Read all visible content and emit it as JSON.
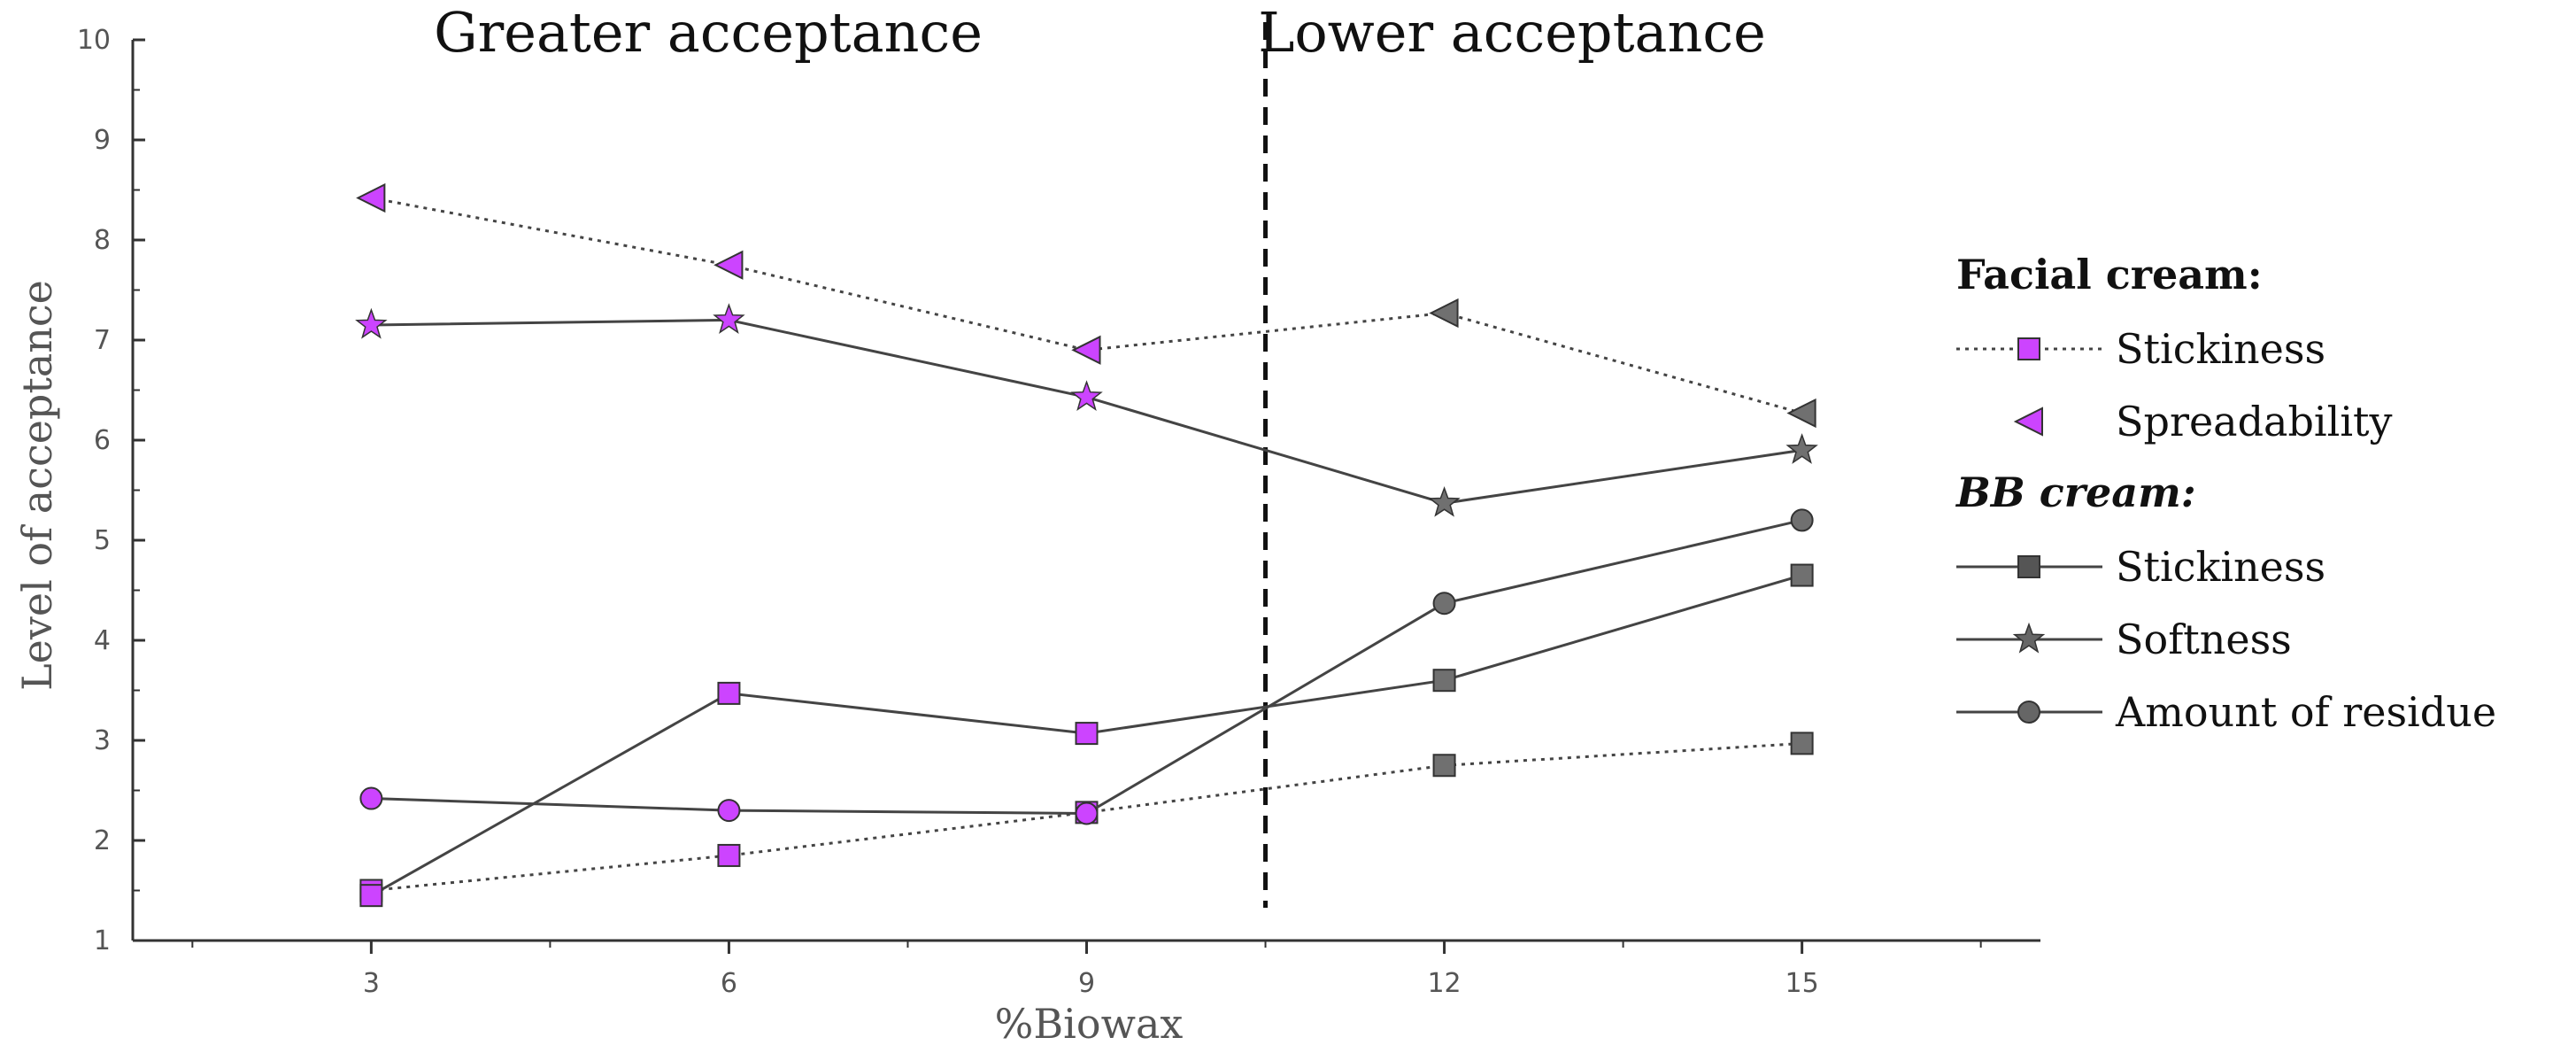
{
  "chart_data": {
    "type": "line",
    "title": "",
    "xlabel": "%Biowax",
    "ylabel": "Level of acceptance",
    "x": [
      3,
      6,
      9,
      12,
      15
    ],
    "xlim": [
      1,
      17
    ],
    "ylim": [
      1,
      10
    ],
    "x_ticks": [
      3,
      6,
      9,
      12,
      15
    ],
    "y_ticks": [
      1,
      2,
      3,
      4,
      5,
      6,
      7,
      8,
      9,
      10
    ],
    "divider_x": 10.5,
    "regions": [
      {
        "label": "Greater acceptance",
        "side": "left"
      },
      {
        "label": "Lower acceptance",
        "side": "right"
      }
    ],
    "legend": {
      "position": "right",
      "groups": [
        {
          "header": "Facial cream:",
          "italic": false,
          "entries": [
            "Stickiness",
            "Spreadability"
          ]
        },
        {
          "header": "BB cream:",
          "italic": true,
          "entries": [
            "Stickiness",
            "Softness",
            "Amount of residue"
          ]
        }
      ]
    },
    "series": [
      {
        "name": "Stickiness",
        "group": "Facial cream",
        "values": [
          1.5,
          1.85,
          2.28,
          2.75,
          2.97
        ],
        "line": "dotted",
        "marker": "square-hollow"
      },
      {
        "name": "Spreadability",
        "group": "Facial cream",
        "values": [
          8.42,
          7.75,
          6.9,
          7.27,
          6.27
        ],
        "line": "dotted",
        "marker": "triangle-left"
      },
      {
        "name": "Stickiness",
        "group": "BB cream",
        "values": [
          1.45,
          3.47,
          3.07,
          3.6,
          4.65
        ],
        "line": "solid",
        "marker": "square"
      },
      {
        "name": "Softness",
        "group": "BB cream",
        "values": [
          7.15,
          7.2,
          6.43,
          5.37,
          5.9
        ],
        "line": "solid",
        "marker": "star"
      },
      {
        "name": "Amount of residue",
        "group": "BB cream",
        "values": [
          2.42,
          2.3,
          2.27,
          4.37,
          5.2
        ],
        "line": "solid",
        "marker": "circle"
      }
    ],
    "colors": {
      "highlight": "#cc44ff",
      "marker": "#707070",
      "line": "#444444",
      "axis": "#333333",
      "divider": "#111111"
    }
  }
}
